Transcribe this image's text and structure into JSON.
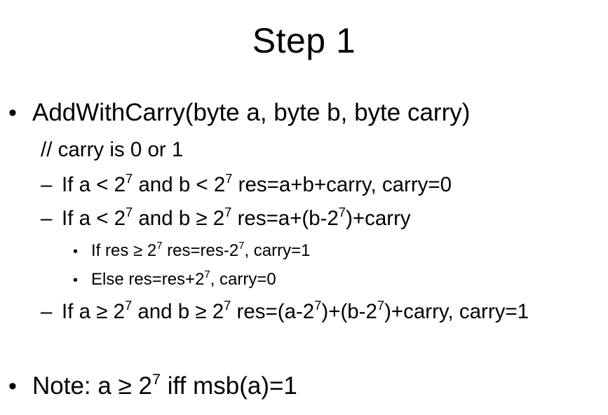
{
  "slide": {
    "title": "Step 1",
    "bullet_1": {
      "marker": "•",
      "text": "AddWithCarry(byte a, byte b, byte carry)"
    },
    "comment": "// carry is 0 or 1",
    "sub_1": {
      "marker": "–",
      "pre": "If a < 2",
      "exp1": "7",
      "mid": " and b < 2",
      "exp2": "7",
      "post": " res=a+b+carry, carry=0"
    },
    "sub_2": {
      "marker": "–",
      "pre": "If a < 2",
      "exp1": "7",
      "mid": " and b ≥ 2",
      "exp2": "7",
      "mid2": " res=a+(b-2",
      "exp3": "7",
      "post": ")+carry"
    },
    "subsub_1": {
      "marker": "•",
      "pre": "If res ≥ 2",
      "exp1": "7",
      "mid": " res=res-2",
      "exp2": "7",
      "post": ", carry=1"
    },
    "subsub_2": {
      "marker": "•",
      "pre": "Else res=res+2",
      "exp1": "7",
      "post": ", carry=0"
    },
    "sub_3": {
      "marker": "–",
      "pre": "If a ≥ 2",
      "exp1": "7",
      "mid": " and b ≥ 2",
      "exp2": "7",
      "mid2": " res=(a-2",
      "exp3": "7",
      "mid3": ")+(b-2",
      "exp4": "7",
      "post": ")+carry, carry=1"
    },
    "bullet_2": {
      "marker": "•",
      "pre": "Note: a ≥ 2",
      "exp1": "7",
      "post": " iff msb(a)=1"
    }
  }
}
